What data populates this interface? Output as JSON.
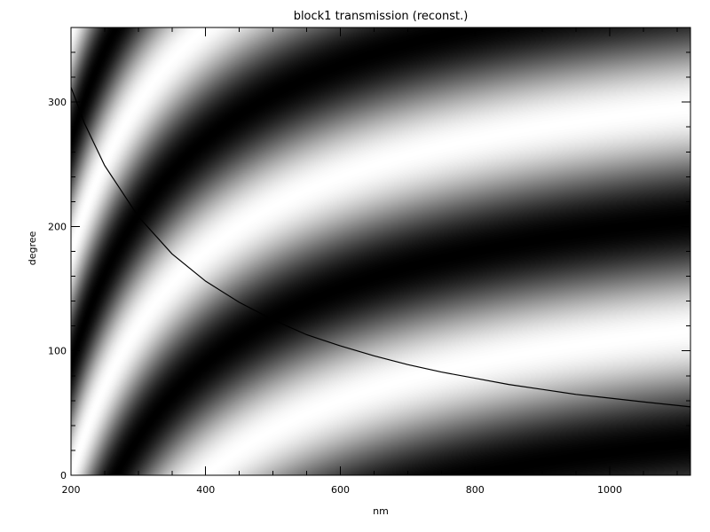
{
  "chart_data": {
    "type": "heatmap",
    "title": "block1 transmission (reconst.)",
    "xlabel": "nm",
    "ylabel": "degree",
    "xlim": [
      200,
      1120
    ],
    "ylim": [
      0,
      360
    ],
    "x_ticks": [
      200,
      400,
      600,
      800,
      1000
    ],
    "y_ticks": [
      0,
      100,
      200,
      300
    ],
    "colormap": "grayscale",
    "grid": false,
    "background_pattern": {
      "description": "fringe intensity from transmission reconstruction",
      "stripe_phase_formula": "phase = (y + 360*(x_min/x))",
      "intensity_formula": "0.5 + 0.5*cos(2*pi*phase/180)"
    },
    "series": [
      {
        "type": "line",
        "x": [
          200,
          220,
          250,
          300,
          350,
          400,
          450,
          500,
          550,
          600,
          650,
          700,
          750,
          800,
          850,
          900,
          950,
          1000,
          1050,
          1120
        ],
        "y": [
          312,
          283,
          249,
          208,
          178,
          156,
          139,
          125,
          113,
          104,
          96,
          89,
          83,
          78,
          73,
          69,
          65,
          62,
          59,
          55
        ]
      }
    ]
  }
}
